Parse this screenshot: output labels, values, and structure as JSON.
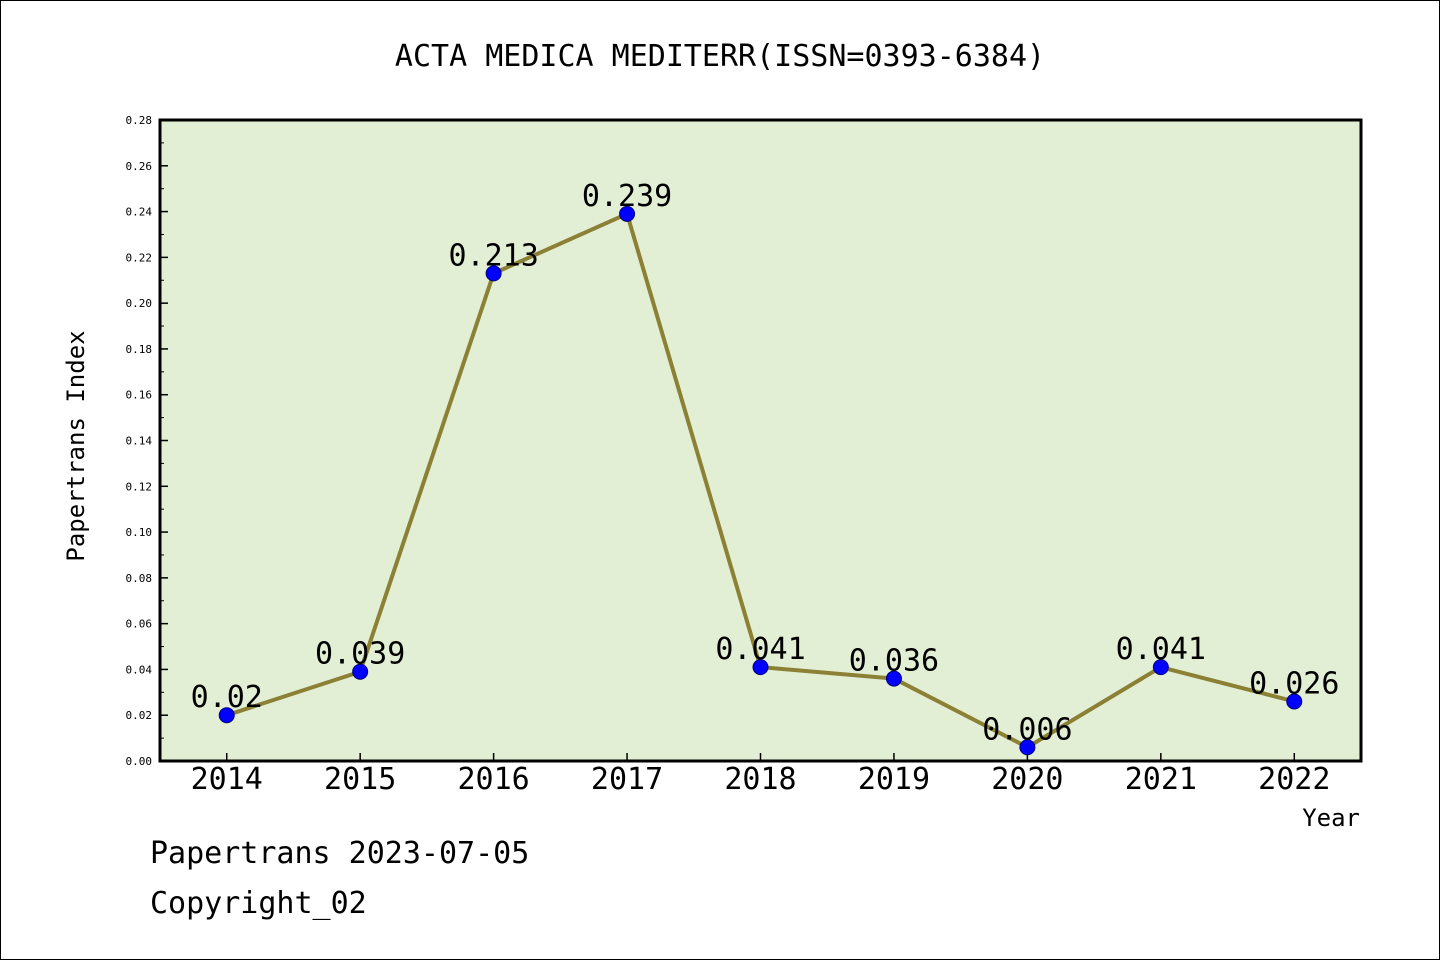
{
  "footer": {
    "source_line": "Papertrans 2023-07-05",
    "copyright_line": "Copyright_02"
  },
  "chart_data": {
    "type": "line",
    "title": "ACTA MEDICA MEDITERR(ISSN=0393-6384)",
    "xlabel": "Year",
    "ylabel": "Papertrans Index",
    "categories": [
      "2014",
      "2015",
      "2016",
      "2017",
      "2018",
      "2019",
      "2020",
      "2021",
      "2022"
    ],
    "series": [
      {
        "values": [
          0.02,
          0.039,
          0.213,
          0.239,
          0.041,
          0.036,
          0.006,
          0.041,
          0.026
        ],
        "labels": [
          "0.02",
          "0.039",
          "0.213",
          "0.239",
          "0.041",
          "0.036",
          "0.006",
          "0.041",
          "0.026"
        ],
        "line_color": "#8B8034",
        "marker_color": "#0000FF"
      }
    ],
    "ylim": [
      0,
      0.28
    ],
    "yticks": [
      "0.00",
      "0.02",
      "0.04",
      "0.06",
      "0.08",
      "0.10",
      "0.12",
      "0.14",
      "0.16",
      "0.18",
      "0.20",
      "0.22",
      "0.24",
      "0.26",
      "0.28"
    ],
    "plot_background": "#E2EFD5",
    "grid": false,
    "legend": "none"
  }
}
